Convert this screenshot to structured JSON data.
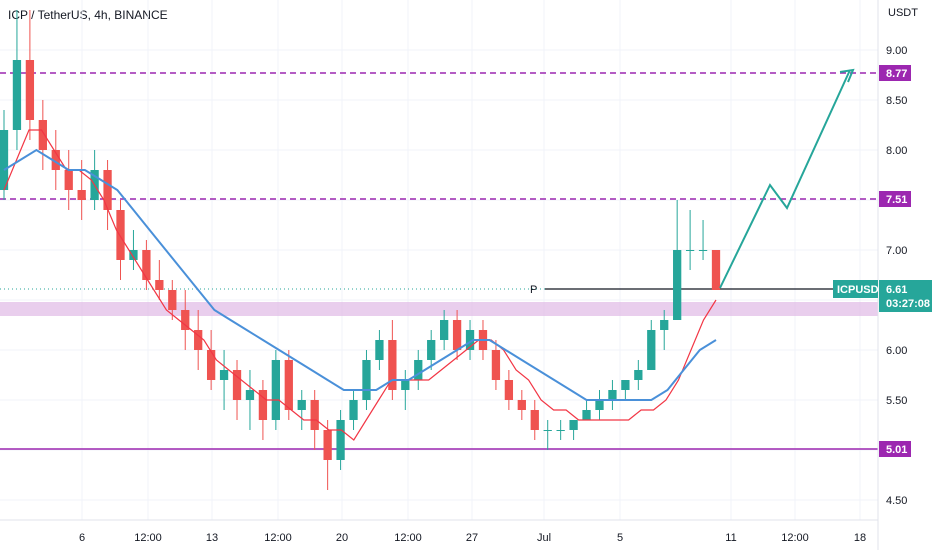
{
  "header": {
    "title": "ICP / TetherUS, 4h, BINANCE"
  },
  "chart_data": {
    "type": "candlestick",
    "symbol": "ICPUSDT",
    "title": "ICP / TetherUS, 4h, BINANCE",
    "currency": "USDT",
    "grid": true,
    "ylim": [
      4.3,
      9.5
    ],
    "y_ticks": [
      "4.50",
      "5.00",
      "5.50",
      "6.00",
      "6.50",
      "7.00",
      "7.50",
      "8.00",
      "8.50",
      "9.00"
    ],
    "x_ticks": [
      "6",
      "12:00",
      "13",
      "12:00",
      "20",
      "12:00",
      "27",
      "Jul",
      "5",
      "11",
      "12:00",
      "18"
    ],
    "price_tag": {
      "symbol": "ICPUSDT",
      "value": "6.61",
      "countdown": "03:27:08",
      "color": "#26a69a"
    },
    "horizontal_levels": [
      {
        "label": "8.77",
        "value": 8.77,
        "style": "dashed",
        "color": "#9c27b0"
      },
      {
        "label": "7.51",
        "value": 7.51,
        "style": "dashed",
        "color": "#9c27b0"
      },
      {
        "label": "5.01",
        "value": 5.01,
        "style": "solid",
        "color": "#9c27b0"
      }
    ],
    "zone": {
      "from": 6.34,
      "to": 6.48,
      "color": "#e1bee7"
    },
    "pivot_label": "P",
    "projection_path": [
      6.62,
      7.65,
      7.42,
      8.8
    ],
    "series": [
      {
        "kind": "ema_fast",
        "color": "#f23645",
        "values": [
          7.6,
          7.9,
          8.2,
          8.2,
          8.0,
          7.8,
          7.8,
          7.7,
          7.5,
          7.2,
          7.0,
          6.8,
          6.6,
          6.4,
          6.3,
          6.2,
          6.1,
          5.9,
          5.8,
          5.7,
          5.6,
          5.5,
          5.5,
          5.4,
          5.3,
          5.3,
          5.2,
          5.2,
          5.1,
          5.3,
          5.5,
          5.7,
          5.7,
          5.7,
          5.7,
          5.8,
          5.9,
          6.0,
          6.1,
          6.1,
          6.0,
          5.8,
          5.7,
          5.5,
          5.4,
          5.4,
          5.3,
          5.3,
          5.3,
          5.3,
          5.3,
          5.4,
          5.4,
          5.5,
          5.7,
          6.0,
          6.3,
          6.5
        ]
      },
      {
        "kind": "ema_slow",
        "color": "#4a90d9",
        "values": [
          7.8,
          7.9,
          8.0,
          7.9,
          7.8,
          7.8,
          7.7,
          7.6,
          7.4,
          7.2,
          7.0,
          6.8,
          6.6,
          6.4,
          6.3,
          6.2,
          6.1,
          6.0,
          5.9,
          5.8,
          5.7,
          5.6,
          5.6,
          5.6,
          5.7,
          5.7,
          5.8,
          5.9,
          6.0,
          6.1,
          6.1,
          6.0,
          5.9,
          5.8,
          5.7,
          5.6,
          5.5,
          5.5,
          5.5,
          5.5,
          5.5,
          5.6,
          5.8,
          6.0,
          6.1
        ]
      }
    ],
    "candles": [
      [
        7.6,
        8.4,
        7.5,
        8.2
      ],
      [
        8.2,
        9.4,
        8.0,
        8.9
      ],
      [
        8.9,
        9.4,
        8.1,
        8.3
      ],
      [
        8.3,
        8.5,
        7.8,
        8.0
      ],
      [
        8.0,
        8.2,
        7.6,
        7.8
      ],
      [
        7.8,
        8.0,
        7.4,
        7.6
      ],
      [
        7.6,
        7.9,
        7.3,
        7.5
      ],
      [
        7.5,
        8.0,
        7.4,
        7.8
      ],
      [
        7.8,
        7.9,
        7.2,
        7.4
      ],
      [
        7.4,
        7.5,
        6.7,
        6.9
      ],
      [
        6.9,
        7.2,
        6.8,
        7.0
      ],
      [
        7.0,
        7.1,
        6.6,
        6.7
      ],
      [
        6.7,
        6.9,
        6.5,
        6.6
      ],
      [
        6.6,
        6.7,
        6.3,
        6.4
      ],
      [
        6.4,
        6.6,
        6.0,
        6.2
      ],
      [
        6.2,
        6.4,
        5.8,
        6.0
      ],
      [
        6.0,
        6.2,
        5.6,
        5.7
      ],
      [
        5.7,
        6.0,
        5.4,
        5.8
      ],
      [
        5.8,
        5.9,
        5.3,
        5.5
      ],
      [
        5.5,
        5.8,
        5.2,
        5.6
      ],
      [
        5.6,
        5.7,
        5.1,
        5.3
      ],
      [
        5.3,
        6.0,
        5.2,
        5.9
      ],
      [
        5.9,
        6.0,
        5.3,
        5.4
      ],
      [
        5.4,
        5.6,
        5.2,
        5.5
      ],
      [
        5.5,
        5.6,
        5.0,
        5.2
      ],
      [
        5.2,
        5.3,
        4.6,
        4.9
      ],
      [
        4.9,
        5.4,
        4.8,
        5.3
      ],
      [
        5.3,
        5.6,
        5.2,
        5.5
      ],
      [
        5.5,
        6.0,
        5.4,
        5.9
      ],
      [
        5.9,
        6.2,
        5.8,
        6.1
      ],
      [
        6.1,
        6.3,
        5.5,
        5.6
      ],
      [
        5.6,
        5.8,
        5.4,
        5.7
      ],
      [
        5.7,
        6.0,
        5.6,
        5.9
      ],
      [
        5.9,
        6.2,
        5.8,
        6.1
      ],
      [
        6.1,
        6.4,
        6.0,
        6.3
      ],
      [
        6.3,
        6.4,
        5.9,
        6.0
      ],
      [
        6.0,
        6.3,
        5.9,
        6.2
      ],
      [
        6.2,
        6.3,
        5.9,
        6.0
      ],
      [
        6.0,
        6.1,
        5.6,
        5.7
      ],
      [
        5.7,
        5.8,
        5.4,
        5.5
      ],
      [
        5.5,
        5.6,
        5.3,
        5.4
      ],
      [
        5.4,
        5.5,
        5.1,
        5.2
      ],
      [
        5.2,
        5.3,
        5.0,
        5.2
      ],
      [
        5.2,
        5.3,
        5.1,
        5.2
      ],
      [
        5.2,
        5.3,
        5.1,
        5.3
      ],
      [
        5.3,
        5.5,
        5.3,
        5.4
      ],
      [
        5.4,
        5.6,
        5.3,
        5.5
      ],
      [
        5.5,
        5.7,
        5.4,
        5.6
      ],
      [
        5.6,
        5.7,
        5.5,
        5.7
      ],
      [
        5.7,
        5.9,
        5.6,
        5.8
      ],
      [
        5.8,
        6.3,
        5.8,
        6.2
      ],
      [
        6.2,
        6.4,
        6.0,
        6.3
      ],
      [
        6.3,
        7.5,
        6.3,
        7.0
      ],
      [
        7.0,
        7.4,
        6.8,
        7.0
      ],
      [
        7.0,
        7.3,
        6.9,
        7.0
      ],
      [
        7.0,
        7.0,
        6.6,
        6.6
      ]
    ]
  }
}
